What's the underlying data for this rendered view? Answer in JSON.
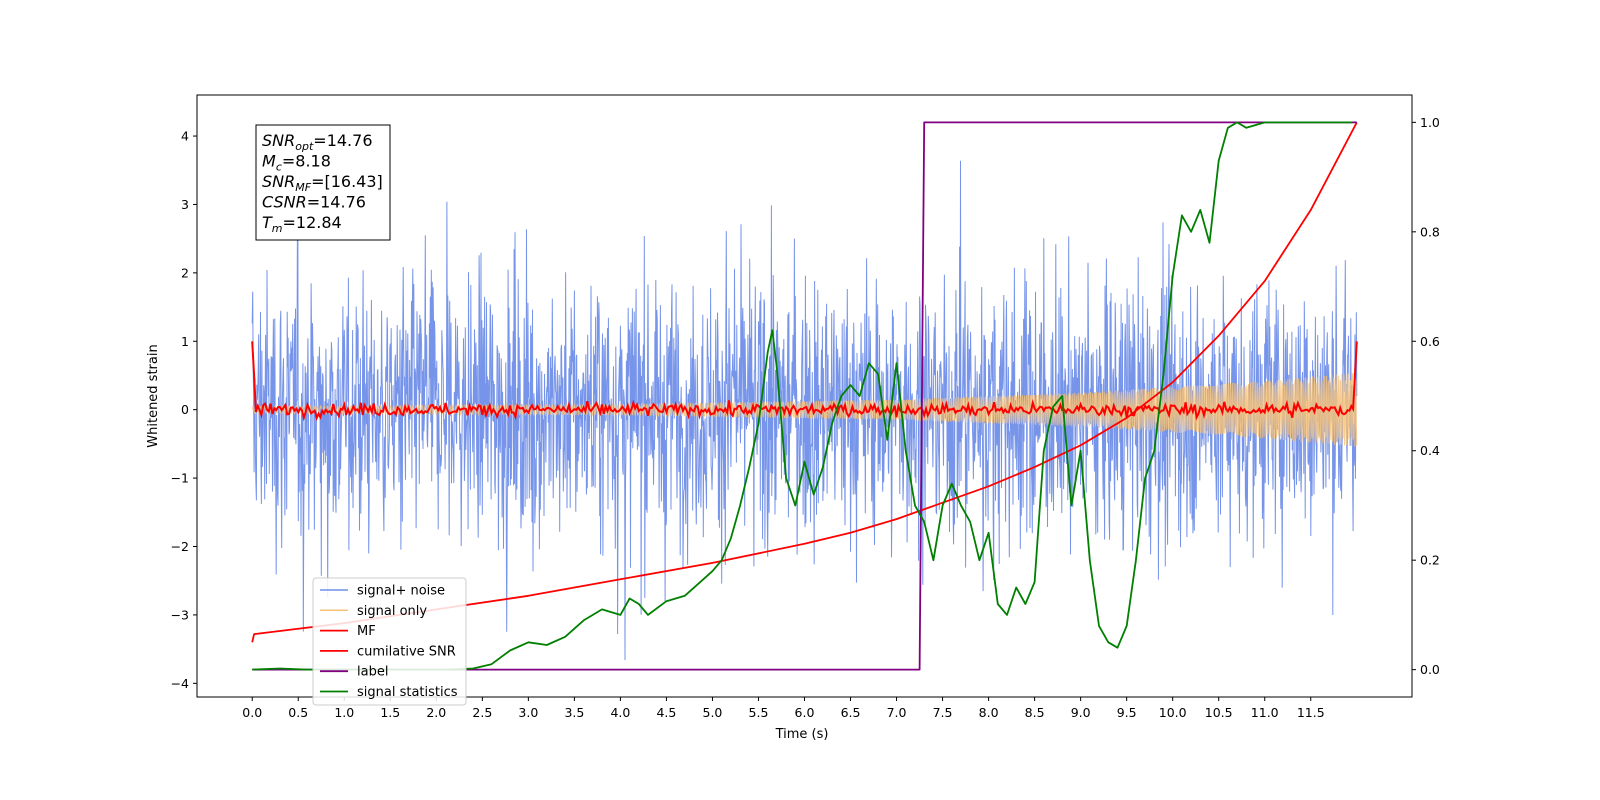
{
  "chart_data": {
    "type": "line",
    "xlabel": "Time (s)",
    "ylabel_left": "Whitened strain",
    "ylabel_right": "",
    "xlim": [
      -0.6,
      12.6
    ],
    "ylim_left": [
      -4.2,
      4.6
    ],
    "ylim_right": [
      -0.05,
      1.05
    ],
    "x_ticks": [
      "0.0",
      "0.5",
      "1.0",
      "1.5",
      "2.0",
      "2.5",
      "3.0",
      "3.5",
      "4.0",
      "4.5",
      "5.0",
      "5.5",
      "6.0",
      "6.5",
      "7.0",
      "7.5",
      "8.0",
      "8.5",
      "9.0",
      "9.5",
      "10.0",
      "10.5",
      "11.0",
      "11.5"
    ],
    "y_ticks_left": [
      "4",
      "3",
      "2",
      "1",
      "0",
      "−1",
      "−2",
      "−3",
      "−4"
    ],
    "y_ticks_right": [
      "1.0",
      "0.8",
      "0.6",
      "0.4",
      "0.2",
      "0.0"
    ],
    "grid": false,
    "legend_position": "lower-left",
    "info_box": [
      {
        "main": "SNR",
        "sub": "opt",
        "rest": "=14.76"
      },
      {
        "main": "M",
        "sub": "c",
        "rest": "=8.18"
      },
      {
        "main": "SNR",
        "sub": "MF",
        "rest": "=[16.43]"
      },
      {
        "main": "CSNR",
        "sub": "",
        "rest": "=14.76"
      },
      {
        "main": "T",
        "sub": "m",
        "rest": "=12.84"
      }
    ],
    "series": [
      {
        "name": "signal+ noise",
        "axis": "left",
        "color": "#6f8ee8",
        "description": "whitened noisy strain, roughly uniform band between -2.5 and 2.5 with spikes to about +/-4",
        "amplitude_std": 0.95,
        "x_range": [
          0.0,
          12.0
        ]
      },
      {
        "name": "signal only",
        "axis": "left",
        "color": "#f6c27a",
        "description": "chirp, envelope grows from about 0.05 to 0.55",
        "envelope": [
          [
            0.0,
            0.05
          ],
          [
            4.0,
            0.08
          ],
          [
            7.0,
            0.15
          ],
          [
            9.0,
            0.25
          ],
          [
            11.0,
            0.42
          ],
          [
            12.0,
            0.55
          ]
        ]
      },
      {
        "name": "MF",
        "axis": "left",
        "color": "#ff0000",
        "description": "matched filter output near 0 with spikes of about 1 at both edges",
        "edges": [
          [
            0.0,
            1.0
          ],
          [
            12.0,
            1.0
          ]
        ]
      },
      {
        "name": "cumilative SNR",
        "axis": "right",
        "color": "#ff0000",
        "x": [
          0.0,
          0.02,
          1.0,
          2.0,
          3.0,
          4.0,
          5.0,
          6.0,
          6.5,
          7.0,
          7.5,
          8.0,
          8.5,
          9.0,
          9.5,
          10.0,
          10.5,
          11.0,
          11.5,
          12.0
        ],
        "y": [
          0.05,
          0.065,
          0.085,
          0.11,
          0.135,
          0.165,
          0.195,
          0.23,
          0.25,
          0.275,
          0.305,
          0.335,
          0.37,
          0.41,
          0.46,
          0.525,
          0.61,
          0.71,
          0.84,
          1.0
        ]
      },
      {
        "name": "label",
        "axis": "right",
        "color": "#800080",
        "x": [
          0.0,
          7.25,
          7.3,
          12.0
        ],
        "y": [
          0.0,
          0.0,
          1.0,
          1.0
        ]
      },
      {
        "name": "signal statistics",
        "axis": "right",
        "color": "#008000",
        "x": [
          0.0,
          0.3,
          0.6,
          0.9,
          1.2,
          1.5,
          1.8,
          2.1,
          2.4,
          2.6,
          2.8,
          3.0,
          3.2,
          3.4,
          3.6,
          3.8,
          4.0,
          4.1,
          4.2,
          4.3,
          4.5,
          4.7,
          4.9,
          5.0,
          5.1,
          5.2,
          5.3,
          5.4,
          5.5,
          5.6,
          5.65,
          5.7,
          5.8,
          5.9,
          6.0,
          6.1,
          6.2,
          6.3,
          6.4,
          6.5,
          6.6,
          6.7,
          6.8,
          6.9,
          7.0,
          7.1,
          7.2,
          7.3,
          7.4,
          7.5,
          7.6,
          7.7,
          7.8,
          7.9,
          8.0,
          8.1,
          8.2,
          8.3,
          8.4,
          8.5,
          8.6,
          8.7,
          8.8,
          8.9,
          9.0,
          9.1,
          9.2,
          9.3,
          9.4,
          9.5,
          9.6,
          9.7,
          9.8,
          9.9,
          10.0,
          10.1,
          10.2,
          10.3,
          10.4,
          10.5,
          10.6,
          10.7,
          10.8,
          11.0,
          11.2,
          11.4,
          11.6,
          11.8,
          11.95
        ],
        "y": [
          0.0,
          0.002,
          0.0,
          0.0,
          0.0,
          0.0,
          0.0,
          0.0,
          0.002,
          0.01,
          0.035,
          0.05,
          0.045,
          0.06,
          0.09,
          0.11,
          0.1,
          0.13,
          0.12,
          0.1,
          0.125,
          0.135,
          0.165,
          0.18,
          0.2,
          0.24,
          0.3,
          0.37,
          0.45,
          0.58,
          0.62,
          0.55,
          0.35,
          0.3,
          0.38,
          0.32,
          0.37,
          0.45,
          0.5,
          0.52,
          0.5,
          0.56,
          0.54,
          0.42,
          0.56,
          0.4,
          0.3,
          0.27,
          0.2,
          0.3,
          0.34,
          0.3,
          0.27,
          0.2,
          0.25,
          0.12,
          0.1,
          0.15,
          0.12,
          0.16,
          0.4,
          0.48,
          0.5,
          0.3,
          0.4,
          0.2,
          0.08,
          0.05,
          0.04,
          0.08,
          0.2,
          0.35,
          0.4,
          0.54,
          0.72,
          0.83,
          0.8,
          0.84,
          0.78,
          0.93,
          0.99,
          1.0,
          0.99,
          1.0,
          1.0,
          1.0,
          1.0,
          1.0,
          1.0
        ]
      }
    ]
  }
}
